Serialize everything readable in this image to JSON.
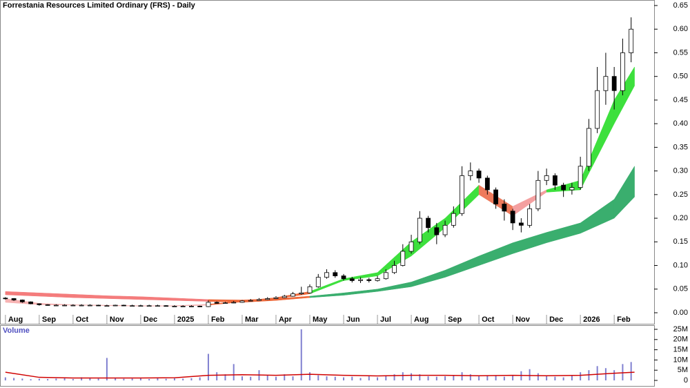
{
  "chart_data": [
    {
      "type": "candlestick",
      "title": "Forrestania Resources Limited Ordinary (FRS) - Daily",
      "xlim": [
        -0.16,
        19.18
      ],
      "xticks": [
        {
          "value": 0,
          "label": "Aug"
        },
        {
          "value": 1,
          "label": "Sep"
        },
        {
          "value": 2,
          "label": "Oct"
        },
        {
          "value": 3,
          "label": "Nov"
        },
        {
          "value": 4,
          "label": "Dec"
        },
        {
          "value": 5,
          "label": "2025"
        },
        {
          "value": 6,
          "label": "Feb"
        },
        {
          "value": 7,
          "label": "Mar"
        },
        {
          "value": 8,
          "label": "Apr"
        },
        {
          "value": 9,
          "label": "May"
        },
        {
          "value": 10,
          "label": "Jun"
        },
        {
          "value": 11,
          "label": "Jul"
        },
        {
          "value": 12,
          "label": "Aug"
        },
        {
          "value": 13,
          "label": "Sep"
        },
        {
          "value": 14,
          "label": "Oct"
        },
        {
          "value": 15,
          "label": "Nov"
        },
        {
          "value": 16,
          "label": "Dec"
        },
        {
          "value": 17,
          "label": "2026"
        },
        {
          "value": 18,
          "label": "Feb"
        }
      ],
      "ylim": [
        0,
        0.65
      ],
      "yticks": [
        {
          "value": 0,
          "label": "0.00"
        },
        {
          "value": 0.05,
          "label": "0.05"
        },
        {
          "value": 0.1,
          "label": "0.10"
        },
        {
          "value": 0.15,
          "label": "0.15"
        },
        {
          "value": 0.2,
          "label": "0.20"
        },
        {
          "value": 0.25,
          "label": "0.25"
        },
        {
          "value": 0.3,
          "label": "0.30"
        },
        {
          "value": 0.35,
          "label": "0.35"
        },
        {
          "value": 0.4,
          "label": "0.40"
        },
        {
          "value": 0.45,
          "label": "0.45"
        },
        {
          "value": 0.5,
          "label": "0.50"
        },
        {
          "value": 0.55,
          "label": "0.55"
        },
        {
          "value": 0.6,
          "label": "0.60"
        },
        {
          "value": 0.65,
          "label": "0.65"
        }
      ],
      "up_color": "#ffffff",
      "down_color": "#000000",
      "x": [
        0,
        0.25,
        0.5,
        0.75,
        1,
        1.25,
        1.5,
        1.75,
        2,
        2.25,
        2.5,
        2.75,
        3,
        3.25,
        3.5,
        3.75,
        4,
        4.25,
        4.5,
        4.75,
        5,
        5.25,
        5.5,
        5.75,
        6,
        6.25,
        6.5,
        6.75,
        7,
        7.25,
        7.5,
        7.75,
        8,
        8.25,
        8.5,
        8.75,
        9,
        9.25,
        9.5,
        9.75,
        10,
        10.25,
        10.5,
        10.75,
        11,
        11.25,
        11.5,
        11.75,
        12,
        12.25,
        12.5,
        12.75,
        13,
        13.25,
        13.5,
        13.75,
        14,
        14.25,
        14.5,
        14.75,
        15,
        15.25,
        15.5,
        15.75,
        16,
        16.25,
        16.5,
        16.75,
        17,
        17.25,
        17.5,
        17.75,
        18,
        18.25,
        18.5
      ],
      "open": [
        0.031,
        0.03,
        0.027,
        0.023,
        0.019,
        0.017,
        0.016,
        0.016,
        0.016,
        0.016,
        0.016,
        0.016,
        0.015,
        0.015,
        0.016,
        0.015,
        0.015,
        0.015,
        0.015,
        0.015,
        0.014,
        0.014,
        0.014,
        0.014,
        0.013,
        0.022,
        0.02,
        0.021,
        0.022,
        0.025,
        0.026,
        0.028,
        0.03,
        0.032,
        0.035,
        0.04,
        0.042,
        0.055,
        0.075,
        0.085,
        0.078,
        0.072,
        0.068,
        0.07,
        0.068,
        0.072,
        0.085,
        0.1,
        0.13,
        0.15,
        0.2,
        0.18,
        0.165,
        0.185,
        0.21,
        0.29,
        0.3,
        0.285,
        0.26,
        0.23,
        0.215,
        0.19,
        0.185,
        0.22,
        0.28,
        0.29,
        0.27,
        0.26,
        0.265,
        0.31,
        0.39,
        0.47,
        0.5,
        0.47,
        0.55
      ],
      "high": [
        0.033,
        0.031,
        0.028,
        0.024,
        0.02,
        0.018,
        0.018,
        0.018,
        0.018,
        0.018,
        0.018,
        0.017,
        0.017,
        0.017,
        0.017,
        0.017,
        0.017,
        0.017,
        0.017,
        0.016,
        0.016,
        0.016,
        0.016,
        0.015,
        0.026,
        0.024,
        0.023,
        0.025,
        0.027,
        0.029,
        0.031,
        0.033,
        0.035,
        0.038,
        0.044,
        0.055,
        0.06,
        0.082,
        0.092,
        0.09,
        0.082,
        0.076,
        0.075,
        0.074,
        0.078,
        0.092,
        0.11,
        0.145,
        0.165,
        0.215,
        0.205,
        0.19,
        0.195,
        0.225,
        0.31,
        0.318,
        0.305,
        0.29,
        0.265,
        0.24,
        0.22,
        0.2,
        0.23,
        0.3,
        0.305,
        0.295,
        0.275,
        0.275,
        0.33,
        0.41,
        0.52,
        0.55,
        0.52,
        0.58,
        0.625
      ],
      "low": [
        0.028,
        0.025,
        0.021,
        0.018,
        0.015,
        0.015,
        0.014,
        0.014,
        0.014,
        0.014,
        0.014,
        0.014,
        0.014,
        0.014,
        0.014,
        0.014,
        0.014,
        0.014,
        0.014,
        0.013,
        0.013,
        0.013,
        0.013,
        0.012,
        0.012,
        0.019,
        0.019,
        0.02,
        0.021,
        0.024,
        0.025,
        0.027,
        0.029,
        0.031,
        0.034,
        0.038,
        0.041,
        0.053,
        0.072,
        0.074,
        0.068,
        0.064,
        0.063,
        0.064,
        0.066,
        0.07,
        0.082,
        0.098,
        0.125,
        0.145,
        0.17,
        0.145,
        0.16,
        0.18,
        0.205,
        0.28,
        0.275,
        0.25,
        0.22,
        0.195,
        0.175,
        0.17,
        0.18,
        0.215,
        0.27,
        0.26,
        0.245,
        0.25,
        0.26,
        0.3,
        0.38,
        0.44,
        0.43,
        0.46,
        0.53
      ],
      "close": [
        0.03,
        0.027,
        0.023,
        0.019,
        0.017,
        0.016,
        0.016,
        0.016,
        0.016,
        0.016,
        0.016,
        0.015,
        0.015,
        0.016,
        0.015,
        0.015,
        0.015,
        0.015,
        0.015,
        0.014,
        0.014,
        0.014,
        0.014,
        0.013,
        0.022,
        0.02,
        0.021,
        0.022,
        0.025,
        0.026,
        0.028,
        0.03,
        0.032,
        0.035,
        0.04,
        0.042,
        0.055,
        0.075,
        0.085,
        0.078,
        0.072,
        0.068,
        0.07,
        0.068,
        0.072,
        0.085,
        0.1,
        0.13,
        0.15,
        0.2,
        0.18,
        0.165,
        0.185,
        0.21,
        0.29,
        0.3,
        0.285,
        0.26,
        0.23,
        0.215,
        0.19,
        0.185,
        0.22,
        0.28,
        0.29,
        0.27,
        0.26,
        0.265,
        0.31,
        0.39,
        0.47,
        0.5,
        0.47,
        0.55,
        0.6
      ],
      "band_x": [
        0,
        1,
        2,
        3,
        4,
        5,
        6,
        7,
        8,
        9,
        10,
        11,
        12,
        13,
        14,
        15,
        16,
        17,
        18,
        18.6
      ],
      "bands": [
        {
          "upper": [
            0.045,
            0.042,
            0.039,
            0.036,
            0.034,
            0.031,
            0.028,
            0.027,
            0.03,
            0.035,
            0.042,
            0.05,
            0.065,
            0.09,
            0.12,
            0.148,
            0.17,
            0.19,
            0.24,
            0.31
          ],
          "lower": [
            0.038,
            0.035,
            0.032,
            0.03,
            0.028,
            0.026,
            0.024,
            0.022,
            0.026,
            0.032,
            0.037,
            0.045,
            0.055,
            0.075,
            0.1,
            0.125,
            0.148,
            0.168,
            0.2,
            0.245
          ],
          "colors": [
            "#f47c7c",
            "#f47c7c",
            "#f47c7c",
            "#f47c7c",
            "#f47c7c",
            "#f47c7c",
            "#ee6a3c",
            "#ee6a3c",
            "#ee6a3c",
            "#3aae6e",
            "#3aae6e",
            "#3aae6e",
            "#3aae6e",
            "#3aae6e",
            "#3aae6e",
            "#3aae6e",
            "#3aae6e",
            "#3aae6e",
            "#3aae6e"
          ]
        },
        {
          "upper": [
            0.03,
            0.02,
            0.017,
            0.016,
            0.015,
            0.015,
            0.018,
            0.025,
            0.032,
            0.045,
            0.072,
            0.085,
            0.15,
            0.2,
            0.27,
            0.225,
            0.26,
            0.28,
            0.45,
            0.52
          ],
          "lower": [
            0.022,
            0.017,
            0.016,
            0.015,
            0.014,
            0.014,
            0.016,
            0.023,
            0.03,
            0.04,
            0.068,
            0.078,
            0.12,
            0.18,
            0.25,
            0.205,
            0.255,
            0.26,
            0.4,
            0.48
          ],
          "colors": [
            "#f7b3b3",
            "#f7b3b3",
            "#f7b3b3",
            "#f7b3b3",
            "#f7b3b3",
            "#f7b3b3",
            "#ee6a3c",
            "#ee6a3c",
            "#ee6a3c",
            "#3de03d",
            "#3de03d",
            "#3de03d",
            "#3de03d",
            "#3de03d",
            "#ee7a5c",
            "#f4a0a0",
            "#3de03d",
            "#3de03d",
            "#3de03d"
          ]
        }
      ]
    },
    {
      "type": "bar",
      "title": "Volume",
      "xlim": [
        -0.16,
        19.18
      ],
      "ylim": [
        0,
        25000000
      ],
      "yticks": [
        {
          "value": 0,
          "label": "0"
        },
        {
          "value": 5000000,
          "label": "5M"
        },
        {
          "value": 10000000,
          "label": "10M"
        },
        {
          "value": 15000000,
          "label": "15M"
        },
        {
          "value": 20000000,
          "label": "20M"
        },
        {
          "value": 25000000,
          "label": "25M"
        }
      ],
      "color": "#8080d0",
      "x": [
        0,
        0.25,
        0.5,
        0.75,
        1,
        1.25,
        1.5,
        1.75,
        2,
        2.25,
        2.5,
        2.75,
        3,
        3.25,
        3.5,
        3.75,
        4,
        4.25,
        4.5,
        4.75,
        5,
        5.25,
        5.5,
        5.75,
        6,
        6.25,
        6.5,
        6.75,
        7,
        7.25,
        7.5,
        7.75,
        8,
        8.25,
        8.5,
        8.75,
        9,
        9.25,
        9.5,
        9.75,
        10,
        10.25,
        10.5,
        10.75,
        11,
        11.25,
        11.5,
        11.75,
        12,
        12.25,
        12.5,
        12.75,
        13,
        13.25,
        13.5,
        13.75,
        14,
        14.25,
        14.5,
        14.75,
        15,
        15.25,
        15.5,
        15.75,
        16,
        16.25,
        16.5,
        16.75,
        17,
        17.25,
        17.5,
        17.75,
        18,
        18.25,
        18.5
      ],
      "values": [
        1500000,
        1200000,
        900000,
        600000,
        800000,
        700000,
        900000,
        1000000,
        700000,
        1500000,
        1100000,
        900000,
        11000000,
        1300000,
        800000,
        900000,
        1000000,
        700000,
        1200000,
        800000,
        1000000,
        900000,
        1100000,
        1500000,
        13000000,
        4000000,
        3000000,
        8000000,
        2000000,
        1800000,
        5000000,
        2500000,
        1800000,
        3000000,
        2000000,
        25000000,
        4000000,
        2500000,
        2000000,
        1800000,
        1500000,
        1800000,
        1200000,
        2000000,
        1500000,
        2500000,
        3000000,
        4000000,
        3500000,
        3000000,
        2000000,
        1800000,
        2000000,
        2500000,
        4000000,
        3000000,
        2000000,
        2200000,
        2500000,
        1800000,
        2500000,
        4500000,
        5500000,
        3500000,
        2000000,
        1800000,
        1500000,
        2500000,
        4000000,
        5000000,
        7000000,
        6000000,
        5000000,
        8000000,
        9000000
      ],
      "ma_color": "#d00000",
      "ma_x": [
        0,
        1,
        2,
        3,
        4,
        5,
        6,
        7,
        8,
        9,
        10,
        11,
        12,
        13,
        14,
        15,
        16,
        17,
        18,
        18.6
      ],
      "ma": [
        4000000,
        1500000,
        1200000,
        1200000,
        1200000,
        1300000,
        2500000,
        2800000,
        2500000,
        3000000,
        2500000,
        2200000,
        2500000,
        2500000,
        2300000,
        2500000,
        2300000,
        2500000,
        3500000,
        4000000
      ]
    }
  ]
}
